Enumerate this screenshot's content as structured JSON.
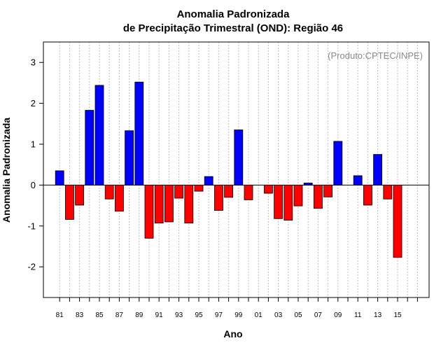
{
  "chart_data": {
    "type": "bar",
    "title": "Anomalia Padronizada",
    "subtitle": "de Precipitação Trimestral (OND): Região 46",
    "xlabel": "Ano",
    "ylabel": "Anomalia Padronizada",
    "credit": "(Produto:CPTEC/INPE)",
    "ylim": [
      -2.75,
      3.5
    ],
    "yticks": [
      -2,
      -1,
      0,
      1,
      2,
      3
    ],
    "xtick_labels": [
      "81",
      "83",
      "85",
      "87",
      "89",
      "91",
      "93",
      "95",
      "97",
      "99",
      "01",
      "03",
      "05",
      "07",
      "09",
      "11",
      "13",
      "15"
    ],
    "categories": [
      "1981",
      "1982",
      "1983",
      "1984",
      "1985",
      "1986",
      "1987",
      "1988",
      "1989",
      "1990",
      "1991",
      "1992",
      "1993",
      "1994",
      "1995",
      "1996",
      "1997",
      "1998",
      "1999",
      "2000",
      "2001",
      "2002",
      "2003",
      "2004",
      "2005",
      "2006",
      "2007",
      "2008",
      "2009",
      "2010",
      "2011",
      "2012",
      "2013",
      "2014",
      "2015",
      "2016",
      "2017"
    ],
    "values": [
      0.35,
      -0.84,
      -0.49,
      1.83,
      2.44,
      -0.34,
      -0.64,
      1.33,
      2.52,
      -1.3,
      -0.93,
      -0.9,
      -0.32,
      -0.93,
      -0.15,
      0.21,
      -0.62,
      -0.3,
      1.35,
      -0.36,
      0,
      -0.2,
      -0.82,
      -0.86,
      -0.51,
      0.05,
      -0.57,
      -0.29,
      1.07,
      0,
      0.23,
      -0.49,
      0.75,
      -0.34,
      -1.77,
      0,
      0
    ],
    "colors": {
      "positive": "#0000ff",
      "negative": "#ff0000",
      "grid": "#bfbfbf"
    },
    "grid": true
  }
}
